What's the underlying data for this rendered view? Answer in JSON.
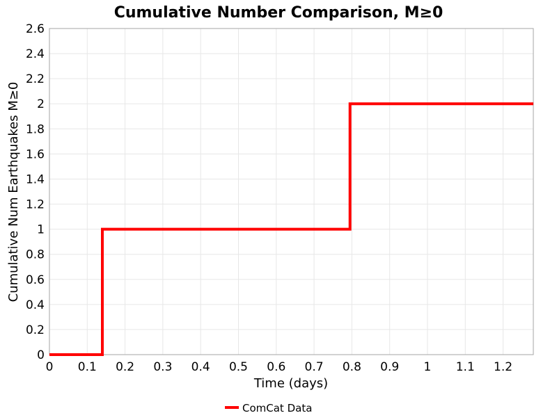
{
  "chart_data": {
    "type": "line",
    "line_style": "step-post",
    "title": "Cumulative Number Comparison, M≥0",
    "xlabel": "Time (days)",
    "ylabel": "Cumulative Num Earthquakes M≥0",
    "xlim": [
      0,
      1.28
    ],
    "ylim": [
      0,
      2.6
    ],
    "grid": true,
    "legend": {
      "position": "bottom-center",
      "entries": [
        "ComCat Data"
      ]
    },
    "x_ticks": {
      "values": [
        0,
        0.1,
        0.2,
        0.3,
        0.4,
        0.5,
        0.6,
        0.7,
        0.8,
        0.9,
        1,
        1.1,
        1.2
      ],
      "labels": [
        "0",
        "0.1",
        "0.2",
        "0.3",
        "0.4",
        "0.5",
        "0.6",
        "0.7",
        "0.8",
        "0.9",
        "1",
        "1.1",
        "1.2"
      ]
    },
    "y_ticks": {
      "values": [
        0,
        0.2,
        0.4,
        0.6,
        0.8,
        1,
        1.2,
        1.4,
        1.6,
        1.8,
        2,
        2.2,
        2.4,
        2.6
      ],
      "labels": [
        "0",
        "0.2",
        "0.4",
        "0.6",
        "0.8",
        "1",
        "1.2",
        "1.4",
        "1.6",
        "1.8",
        "2",
        "2.2",
        "2.4",
        "2.6"
      ]
    },
    "colors": {
      "line": "#ff0000",
      "grid": "#e7e7e7",
      "spine": "#a6a6a6",
      "text": "#000000",
      "background": "#ffffff"
    },
    "series": [
      {
        "name": "ComCat Data",
        "color": "#ff0000",
        "line_width": 4,
        "event_times_days": [
          0.14,
          0.795
        ],
        "cumulative_counts": [
          1,
          2
        ],
        "step_points": [
          [
            0,
            0
          ],
          [
            0.14,
            0
          ],
          [
            0.14,
            1
          ],
          [
            0.795,
            1
          ],
          [
            0.795,
            2
          ],
          [
            1.28,
            2
          ]
        ]
      }
    ]
  }
}
